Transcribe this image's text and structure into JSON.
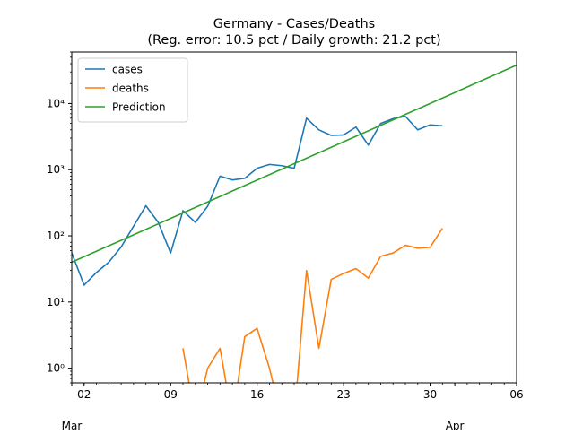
{
  "chart_data": {
    "type": "line",
    "title": "Germany - Cases/Deaths",
    "subtitle": "(Reg. error: 10.5 pct / Daily growth: 21.2 pct)",
    "xlabel": "",
    "ylabel": "",
    "yscale": "log",
    "ylim": [
      0.6,
      60000
    ],
    "xlim": [
      "2020-03-01",
      "2020-04-06"
    ],
    "x_ticks": [
      {
        "date": "2020-03-02",
        "label": "02"
      },
      {
        "date": "2020-03-09",
        "label": "09"
      },
      {
        "date": "2020-03-16",
        "label": "16"
      },
      {
        "date": "2020-03-23",
        "label": "23"
      },
      {
        "date": "2020-03-30",
        "label": "30"
      },
      {
        "date": "2020-04-06",
        "label": "06"
      }
    ],
    "x_month_labels": [
      {
        "date": "2020-03-01",
        "label": "Mar"
      },
      {
        "date": "2020-04-01",
        "label": "Apr"
      }
    ],
    "y_ticks": [
      {
        "value": 1,
        "label": "10⁰"
      },
      {
        "value": 10,
        "label": "10¹"
      },
      {
        "value": 100,
        "label": "10²"
      },
      {
        "value": 1000,
        "label": "10³"
      },
      {
        "value": 10000,
        "label": "10⁴"
      }
    ],
    "grid": false,
    "legend_position": "top-left",
    "series": [
      {
        "name": "cases",
        "color": "#1f77b4",
        "points": [
          [
            "2020-03-01",
            55
          ],
          [
            "2020-03-02",
            18
          ],
          [
            "2020-03-03",
            28
          ],
          [
            "2020-03-04",
            40
          ],
          [
            "2020-03-05",
            68
          ],
          [
            "2020-03-06",
            140
          ],
          [
            "2020-03-07",
            285
          ],
          [
            "2020-03-08",
            160
          ],
          [
            "2020-03-09",
            55
          ],
          [
            "2020-03-10",
            240
          ],
          [
            "2020-03-11",
            160
          ],
          [
            "2020-03-12",
            280
          ],
          [
            "2020-03-13",
            800
          ],
          [
            "2020-03-14",
            700
          ],
          [
            "2020-03-15",
            740
          ],
          [
            "2020-03-16",
            1050
          ],
          [
            "2020-03-17",
            1200
          ],
          [
            "2020-03-18",
            1150
          ],
          [
            "2020-03-19",
            1050
          ],
          [
            "2020-03-20",
            6000
          ],
          [
            "2020-03-21",
            4000
          ],
          [
            "2020-03-22",
            3300
          ],
          [
            "2020-03-23",
            3350
          ],
          [
            "2020-03-24",
            4400
          ],
          [
            "2020-03-25",
            2350
          ],
          [
            "2020-03-26",
            5000
          ],
          [
            "2020-03-27",
            5900
          ],
          [
            "2020-03-28",
            6400
          ],
          [
            "2020-03-29",
            4000
          ],
          [
            "2020-03-30",
            4750
          ],
          [
            "2020-03-31",
            4600
          ]
        ]
      },
      {
        "name": "deaths",
        "color": "#ff7f0e",
        "points": [
          [
            "2020-03-10",
            2
          ],
          [
            "2020-03-11",
            0
          ],
          [
            "2020-03-12",
            1
          ],
          [
            "2020-03-13",
            2
          ],
          [
            "2020-03-14",
            0
          ],
          [
            "2020-03-15",
            3
          ],
          [
            "2020-03-16",
            4
          ],
          [
            "2020-03-17",
            1
          ],
          [
            "2020-03-18",
            0
          ],
          [
            "2020-03-19",
            0
          ],
          [
            "2020-03-20",
            30
          ],
          [
            "2020-03-21",
            2
          ],
          [
            "2020-03-22",
            22
          ],
          [
            "2020-03-23",
            27
          ],
          [
            "2020-03-24",
            32
          ],
          [
            "2020-03-25",
            23
          ],
          [
            "2020-03-26",
            49
          ],
          [
            "2020-03-27",
            55
          ],
          [
            "2020-03-28",
            72
          ],
          [
            "2020-03-29",
            65
          ],
          [
            "2020-03-30",
            67
          ],
          [
            "2020-03-31",
            130
          ]
        ]
      },
      {
        "name": "Prediction",
        "color": "#2ca02c",
        "points": [
          [
            "2020-03-01",
            40
          ],
          [
            "2020-04-06",
            38000
          ]
        ]
      }
    ]
  }
}
